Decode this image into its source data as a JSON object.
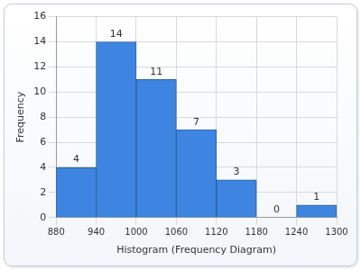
{
  "chart_data": {
    "type": "histogram",
    "xlabel": "Histogram (Frequency Diagram)",
    "ylabel": "Frequency",
    "bins": [
      880,
      940,
      1000,
      1060,
      1120,
      1180,
      1240,
      1300
    ],
    "values": [
      4,
      14,
      11,
      7,
      3,
      0,
      1
    ],
    "color": "#3d85e0",
    "xlim": [
      880,
      1300
    ],
    "xticks": [
      880,
      940,
      1000,
      1060,
      1120,
      1180,
      1240,
      1300
    ],
    "ylim": [
      0,
      16
    ],
    "yticks": [
      0,
      2,
      4,
      6,
      8,
      10,
      12,
      14,
      16
    ],
    "grid": true,
    "data_labels": true
  }
}
